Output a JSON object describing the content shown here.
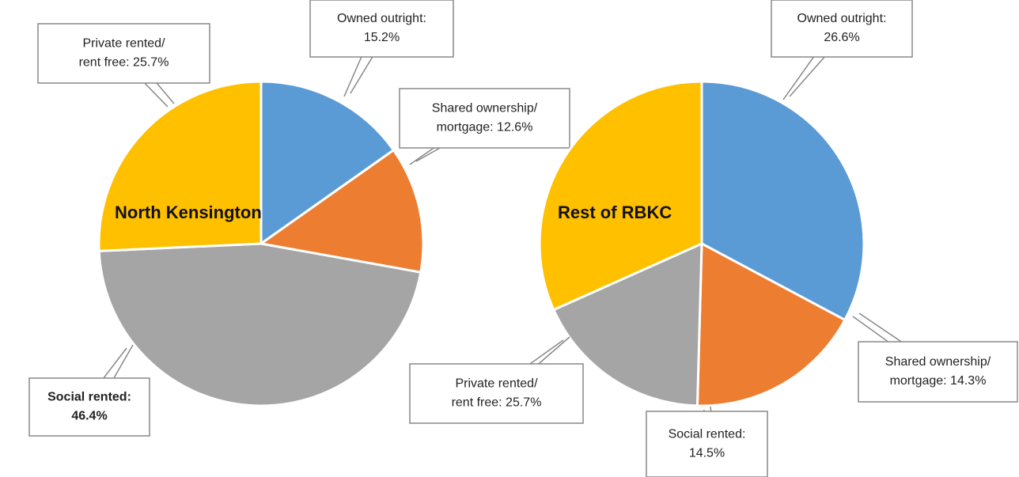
{
  "chart_data": [
    {
      "type": "pie",
      "title": "North Kensington",
      "values": [
        15.2,
        12.6,
        46.4,
        25.7
      ],
      "value_labels": [
        [
          "Owned outright:",
          "15.2%"
        ],
        [
          "Shared ownership/",
          "mortgage: 12.6%"
        ],
        [
          "Social rented:",
          "46.4%"
        ],
        [
          "Private rented/",
          "rent free: 25.7%"
        ]
      ],
      "colors": [
        "#5b9bd5",
        "#ed7d31",
        "#a5a5a5",
        "#ffc000"
      ]
    },
    {
      "type": "pie",
      "title": "Rest of RBKC",
      "values": [
        26.6,
        14.3,
        14.5,
        25.7
      ],
      "value_labels": [
        [
          "Owned outright:",
          "26.6%"
        ],
        [
          "Shared ownership/",
          "mortgage: 14.3%"
        ],
        [
          "Social rented:",
          "14.5%"
        ],
        [
          "Private rented/",
          "rent free: 25.7%"
        ]
      ],
      "colors": [
        "#5b9bd5",
        "#ed7d31",
        "#a5a5a5",
        "#ffc000"
      ]
    }
  ]
}
